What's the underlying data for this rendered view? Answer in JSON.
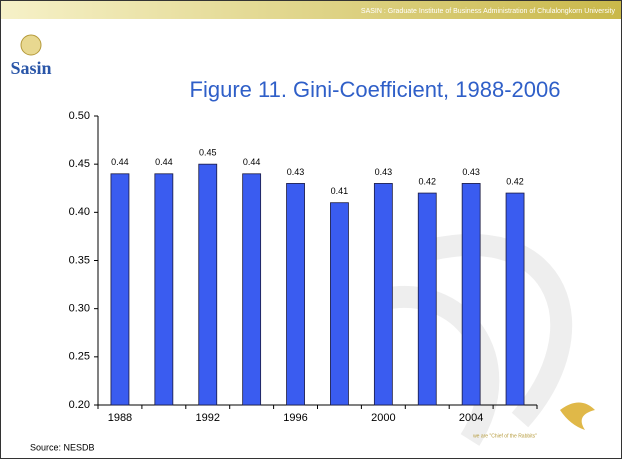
{
  "header": "SASIN : Graduate Institute of Business Administration of Chulalongkorn University",
  "logo": "Sasin",
  "source": "Source: NESDB",
  "tagline": "we are \"Chief of the Rabbits\"",
  "chart_data": {
    "type": "bar",
    "title": "Figure 11. Gini-Coefficient, 1988-2006",
    "categories": [
      "1988",
      null,
      "1992",
      null,
      "1996",
      null,
      "2000",
      null,
      "2004",
      null
    ],
    "values": [
      0.44,
      0.44,
      0.45,
      0.44,
      0.43,
      0.41,
      0.43,
      0.42,
      0.43,
      0.42
    ],
    "color": "#3a5cf0",
    "ylim": [
      0.2,
      0.5
    ],
    "yticks": [
      {
        "value": 0.2,
        "label": "0.20"
      },
      {
        "value": 0.25,
        "label": "0.25"
      },
      {
        "value": 0.3,
        "label": "0.30"
      },
      {
        "value": 0.35,
        "label": "0.35"
      },
      {
        "value": 0.4,
        "label": "0.40"
      },
      {
        "value": 0.45,
        "label": "0.45"
      },
      {
        "value": 0.5,
        "label": "0.50"
      }
    ],
    "grid": false
  }
}
